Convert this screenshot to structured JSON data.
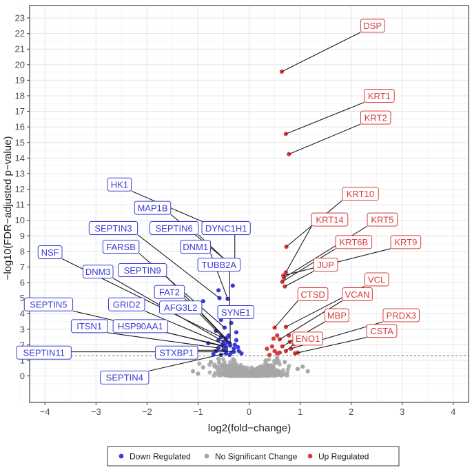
{
  "chart_data": {
    "type": "scatter",
    "title": "",
    "xlabel": "log2(fold−change)",
    "ylabel": "−log10(FDR−adjusted  p−value)",
    "xlim": [
      -4.3,
      4.3
    ],
    "ylim": [
      -1.7,
      23.8
    ],
    "x_ticks": [
      -4,
      -3,
      -2,
      -1,
      0,
      1,
      2,
      3,
      4
    ],
    "x_tick_labels": [
      "−4",
      "−3",
      "−2",
      "−1",
      "0",
      "1",
      "2",
      "3",
      "4"
    ],
    "y_ticks": [
      0,
      1,
      2,
      3,
      4,
      5,
      6,
      7,
      8,
      9,
      10,
      11,
      12,
      13,
      14,
      15,
      16,
      17,
      18,
      19,
      20,
      21,
      22,
      23
    ],
    "y_tick_labels": [
      "0",
      "1",
      "2",
      "3",
      "4",
      "5",
      "6",
      "7",
      "8",
      "9",
      "10",
      "11",
      "12",
      "13",
      "14",
      "15",
      "16",
      "17",
      "18",
      "19",
      "20",
      "21",
      "22",
      "23"
    ],
    "threshold_y": 1.3,
    "grid": true,
    "legend_position": "bottom",
    "colors": {
      "down": "#3b3bd6",
      "none": "#a6a6a6",
      "up": "#d63b3b"
    },
    "legend": [
      {
        "key": "down",
        "label": "Down Regulated"
      },
      {
        "key": "none",
        "label": "No Significant Change"
      },
      {
        "key": "up",
        "label": "Up Regulated"
      }
    ],
    "labeled_points": [
      {
        "gene": "DSP",
        "x": 0.64,
        "y": 19.55,
        "group": "up",
        "label_x": 2.42,
        "label_y": 22.5
      },
      {
        "gene": "KRT1",
        "x": 0.72,
        "y": 15.55,
        "group": "up",
        "label_x": 2.55,
        "label_y": 18.0
      },
      {
        "gene": "KRT2",
        "x": 0.78,
        "y": 14.25,
        "group": "up",
        "label_x": 2.48,
        "label_y": 16.6
      },
      {
        "gene": "KRT10",
        "x": 0.73,
        "y": 8.3,
        "group": "up",
        "label_x": 2.18,
        "label_y": 11.7
      },
      {
        "gene": "KRT14",
        "x": 0.72,
        "y": 6.65,
        "group": "up",
        "label_x": 1.58,
        "label_y": 10.05
      },
      {
        "gene": "KRT5",
        "x": 0.68,
        "y": 6.3,
        "group": "up",
        "label_x": 2.61,
        "label_y": 10.05
      },
      {
        "gene": "KRT6B",
        "x": 0.65,
        "y": 6.05,
        "group": "up",
        "label_x": 2.05,
        "label_y": 8.6
      },
      {
        "gene": "KRT9",
        "x": 0.67,
        "y": 6.45,
        "group": "up",
        "label_x": 3.07,
        "label_y": 8.6
      },
      {
        "gene": "JUP",
        "x": 0.7,
        "y": 5.75,
        "group": "up",
        "label_x": 1.5,
        "label_y": 7.15
      },
      {
        "gene": "VCL",
        "x": 0.72,
        "y": 3.15,
        "group": "up",
        "label_x": 2.5,
        "label_y": 6.2
      },
      {
        "gene": "CTSD",
        "x": 0.5,
        "y": 3.1,
        "group": "up",
        "label_x": 1.25,
        "label_y": 5.25
      },
      {
        "gene": "VCAN",
        "x": 0.6,
        "y": 2.35,
        "group": "up",
        "label_x": 2.12,
        "label_y": 5.25
      },
      {
        "gene": "PRDX3",
        "x": 0.82,
        "y": 1.75,
        "group": "up",
        "label_x": 2.98,
        "label_y": 3.9
      },
      {
        "gene": "MBP",
        "x": 0.65,
        "y": 1.9,
        "group": "up",
        "label_x": 1.72,
        "label_y": 3.9
      },
      {
        "gene": "CSTA",
        "x": 0.9,
        "y": 1.45,
        "group": "up",
        "label_x": 2.6,
        "label_y": 2.9
      },
      {
        "gene": "ENO1",
        "x": 0.72,
        "y": 1.6,
        "group": "up",
        "label_x": 1.15,
        "label_y": 2.4
      },
      {
        "gene": "HK1",
        "x": -0.69,
        "y": 9.6,
        "group": "down",
        "label_x": -2.54,
        "label_y": 12.3
      },
      {
        "gene": "MAP1B",
        "x": -0.37,
        "y": 7.2,
        "group": "down",
        "label_x": -1.89,
        "label_y": 10.8
      },
      {
        "gene": "DYNC1H1",
        "x": -0.28,
        "y": 7.4,
        "group": "down",
        "label_x": -0.45,
        "label_y": 9.5
      },
      {
        "gene": "SEPTIN3",
        "x": -0.58,
        "y": 5.0,
        "group": "down",
        "label_x": -2.66,
        "label_y": 9.5
      },
      {
        "gene": "SEPTIN6",
        "x": -0.3,
        "y": 6.95,
        "group": "down",
        "label_x": -1.47,
        "label_y": 9.5
      },
      {
        "gene": "FARSB",
        "x": -0.48,
        "y": 3.1,
        "group": "down",
        "label_x": -2.51,
        "label_y": 8.3
      },
      {
        "gene": "DNM1",
        "x": -0.42,
        "y": 4.95,
        "group": "down",
        "label_x": -1.05,
        "label_y": 8.3
      },
      {
        "gene": "NSF",
        "x": -0.55,
        "y": 2.5,
        "group": "down",
        "label_x": -3.9,
        "label_y": 7.95
      },
      {
        "gene": "SEPTIN9",
        "x": -0.45,
        "y": 2.4,
        "group": "down",
        "label_x": -2.09,
        "label_y": 6.8
      },
      {
        "gene": "DNM3",
        "x": -0.5,
        "y": 2.2,
        "group": "down",
        "label_x": -2.96,
        "label_y": 6.7
      },
      {
        "gene": "TUBB2A",
        "x": -0.38,
        "y": 4.0,
        "group": "down",
        "label_x": -0.59,
        "label_y": 7.15
      },
      {
        "gene": "FAT2",
        "x": -0.42,
        "y": 2.15,
        "group": "down",
        "label_x": -1.56,
        "label_y": 5.4
      },
      {
        "gene": "SEPTIN5",
        "x": -0.52,
        "y": 1.95,
        "group": "down",
        "label_x": -3.93,
        "label_y": 4.6
      },
      {
        "gene": "GRID2",
        "x": -0.48,
        "y": 2.0,
        "group": "down",
        "label_x": -2.4,
        "label_y": 4.6
      },
      {
        "gene": "AFG3L2",
        "x": -0.38,
        "y": 2.1,
        "group": "down",
        "label_x": -1.34,
        "label_y": 4.4
      },
      {
        "gene": "SYNE1",
        "x": -0.37,
        "y": 1.95,
        "group": "down",
        "label_x": -0.26,
        "label_y": 4.1
      },
      {
        "gene": "ITSN1",
        "x": -0.6,
        "y": 1.8,
        "group": "down",
        "label_x": -3.13,
        "label_y": 3.2
      },
      {
        "gene": "HSP90AA1",
        "x": -0.45,
        "y": 1.85,
        "group": "down",
        "label_x": -2.13,
        "label_y": 3.2
      },
      {
        "gene": "SEPTIN11",
        "x": -0.3,
        "y": 1.55,
        "group": "down",
        "label_x": -4.02,
        "label_y": 1.5
      },
      {
        "gene": "STXBP1",
        "x": -0.45,
        "y": 1.65,
        "group": "down",
        "label_x": -1.42,
        "label_y": 1.5
      },
      {
        "gene": "SEPTIN4",
        "x": -0.45,
        "y": 1.45,
        "group": "down",
        "label_x": -2.44,
        "label_y": -0.1
      }
    ],
    "other_significant_points": {
      "down": [
        [
          -0.9,
          4.8
        ],
        [
          -0.6,
          5.5
        ],
        [
          -0.5,
          4.3
        ],
        [
          -0.32,
          5.8
        ],
        [
          -0.55,
          3.6
        ],
        [
          -0.35,
          3.4
        ],
        [
          -0.25,
          2.8
        ],
        [
          -0.65,
          2.9
        ],
        [
          -0.4,
          2.6
        ],
        [
          -0.3,
          1.75
        ],
        [
          -0.2,
          1.6
        ],
        [
          -0.15,
          1.45
        ],
        [
          -0.7,
          1.4
        ],
        [
          -0.8,
          2.1
        ],
        [
          -0.6,
          2.3
        ],
        [
          -0.25,
          2.3
        ],
        [
          -0.35,
          1.5
        ],
        [
          -0.5,
          1.7
        ],
        [
          -0.55,
          1.35
        ],
        [
          -0.38,
          1.35
        ],
        [
          -0.42,
          2.5
        ],
        [
          -0.28,
          2.0
        ],
        [
          -0.22,
          1.85
        ],
        [
          -0.65,
          1.6
        ]
      ],
      "up": [
        [
          0.45,
          1.9
        ],
        [
          0.35,
          1.75
        ],
        [
          0.55,
          2.6
        ],
        [
          0.6,
          1.5
        ],
        [
          0.78,
          2.6
        ],
        [
          0.88,
          2.05
        ],
        [
          0.95,
          1.5
        ],
        [
          0.55,
          1.45
        ],
        [
          0.5,
          1.6
        ],
        [
          0.4,
          1.35
        ],
        [
          0.8,
          2.2
        ],
        [
          0.48,
          2.4
        ]
      ]
    }
  }
}
